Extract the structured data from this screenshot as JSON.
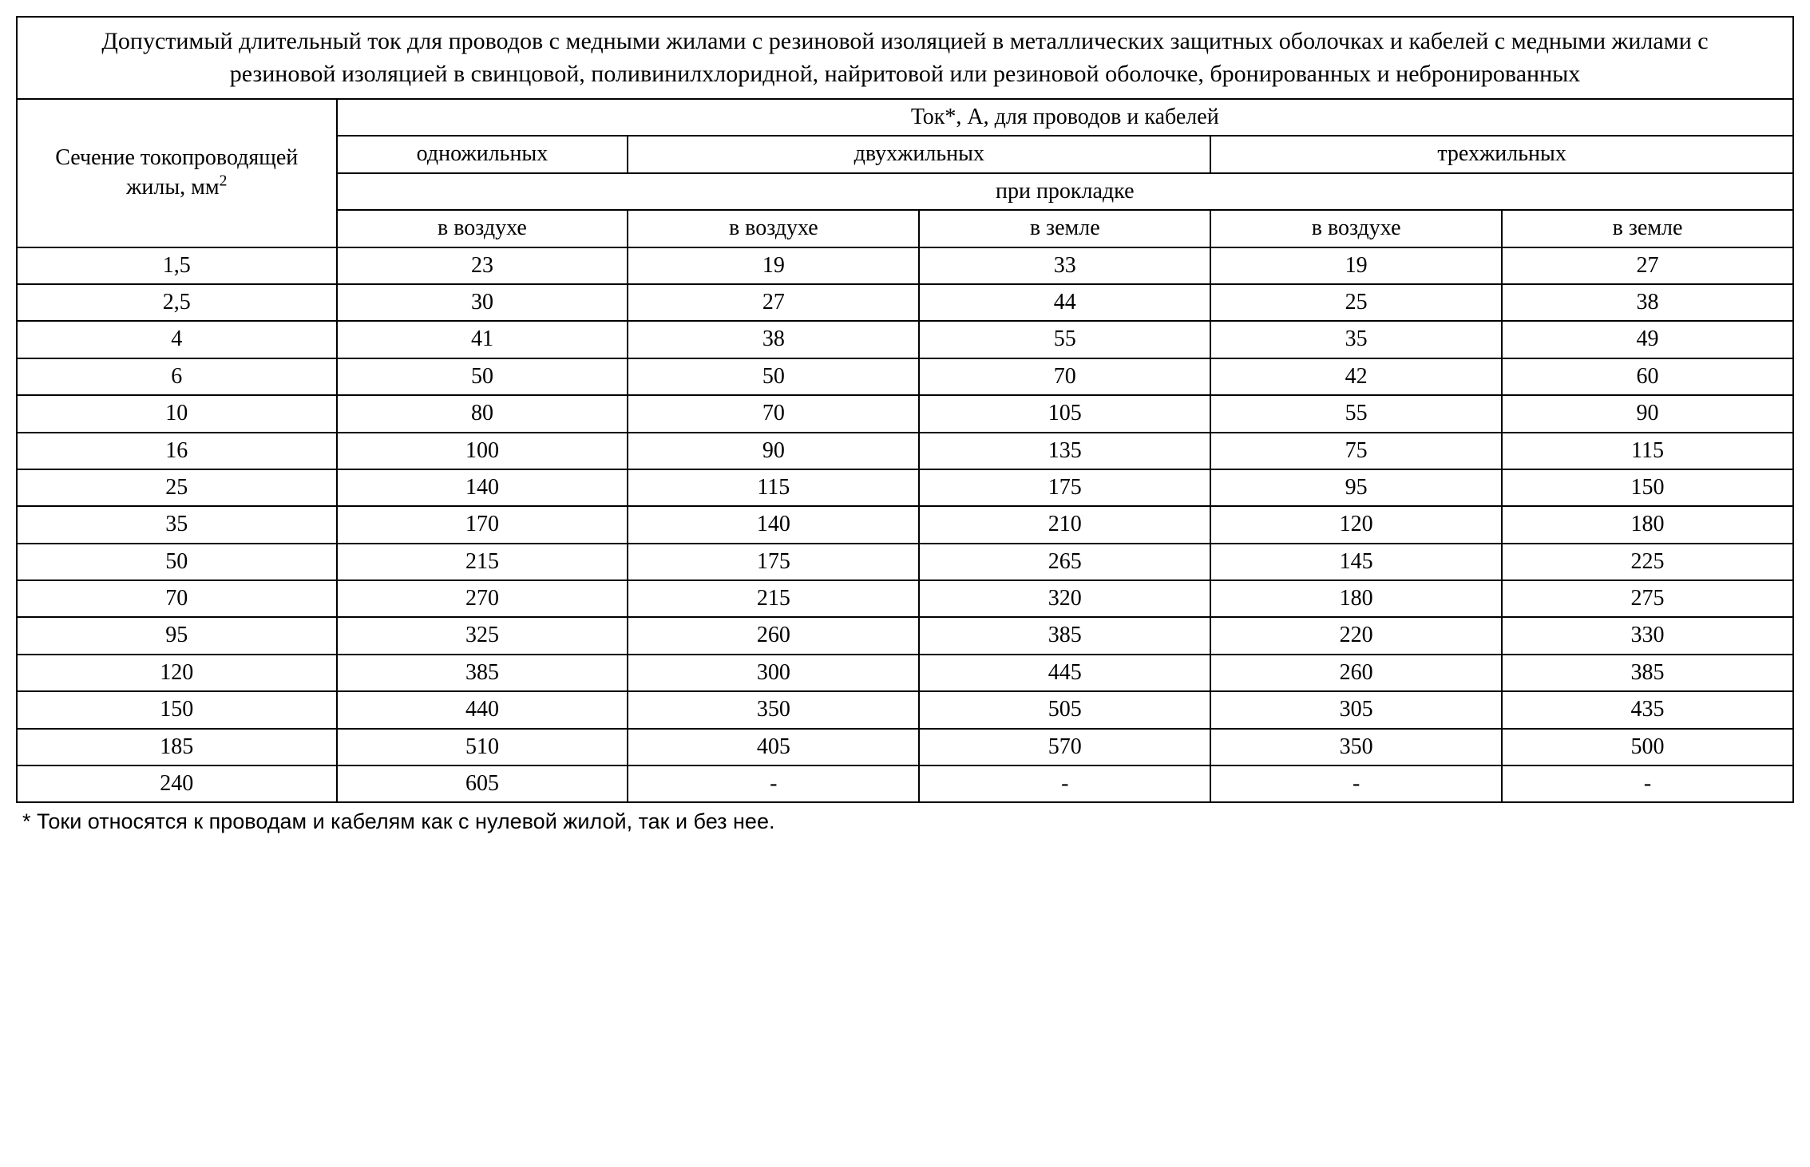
{
  "table": {
    "title": "Допустимый длительный ток для проводов с медными жилами с резиновой изоляцией в металлических защитных оболочках и кабелей с медными жилами с резиновой изоляцией в свинцовой, поливинилхлоридной, найритовой или резиновой оболочке, бронированных и небронированных",
    "section_header_pre": "Сечение токопроводящей жилы, мм",
    "section_header_sup": "2",
    "current_header": "Ток*, А, для проводов и кабелей",
    "core_single": "одножильных",
    "core_two": "двухжильных",
    "core_three": "трехжильных",
    "laying_header": "при прокладке",
    "col_air": "в воздухе",
    "col_ground": "в земле",
    "rows": [
      {
        "section": "1,5",
        "c1": "23",
        "c2": "19",
        "c3": "33",
        "c4": "19",
        "c5": "27"
      },
      {
        "section": "2,5",
        "c1": "30",
        "c2": "27",
        "c3": "44",
        "c4": "25",
        "c5": "38"
      },
      {
        "section": "4",
        "c1": "41",
        "c2": "38",
        "c3": "55",
        "c4": "35",
        "c5": "49"
      },
      {
        "section": "6",
        "c1": "50",
        "c2": "50",
        "c3": "70",
        "c4": "42",
        "c5": "60"
      },
      {
        "section": "10",
        "c1": "80",
        "c2": "70",
        "c3": "105",
        "c4": "55",
        "c5": "90"
      },
      {
        "section": "16",
        "c1": "100",
        "c2": "90",
        "c3": "135",
        "c4": "75",
        "c5": "115"
      },
      {
        "section": "25",
        "c1": "140",
        "c2": "115",
        "c3": "175",
        "c4": "95",
        "c5": "150"
      },
      {
        "section": "35",
        "c1": "170",
        "c2": "140",
        "c3": "210",
        "c4": "120",
        "c5": "180"
      },
      {
        "section": "50",
        "c1": "215",
        "c2": "175",
        "c3": "265",
        "c4": "145",
        "c5": "225"
      },
      {
        "section": "70",
        "c1": "270",
        "c2": "215",
        "c3": "320",
        "c4": "180",
        "c5": "275"
      },
      {
        "section": "95",
        "c1": "325",
        "c2": "260",
        "c3": "385",
        "c4": "220",
        "c5": "330"
      },
      {
        "section": "120",
        "c1": "385",
        "c2": "300",
        "c3": "445",
        "c4": "260",
        "c5": "385"
      },
      {
        "section": "150",
        "c1": "440",
        "c2": "350",
        "c3": "505",
        "c4": "305",
        "c5": "435"
      },
      {
        "section": "185",
        "c1": "510",
        "c2": "405",
        "c3": "570",
        "c4": "350",
        "c5": "500"
      },
      {
        "section": "240",
        "c1": "605",
        "c2": "-",
        "c3": "-",
        "c4": "-",
        "c5": "-"
      }
    ],
    "footnote": "* Токи относятся к проводам и кабелям как с нулевой жилой, так и без нее.",
    "styling": {
      "border_color": "#000000",
      "background_color": "#ffffff",
      "text_color": "#000000",
      "body_fontsize": 28,
      "title_fontsize": 30,
      "footnote_fontsize": 27,
      "font_family_body": "Times New Roman",
      "font_family_footnote": "Arial",
      "border_width": 2,
      "column_widths_pct": [
        18,
        16.4,
        16.4,
        16.4,
        16.4,
        16.4
      ]
    }
  }
}
